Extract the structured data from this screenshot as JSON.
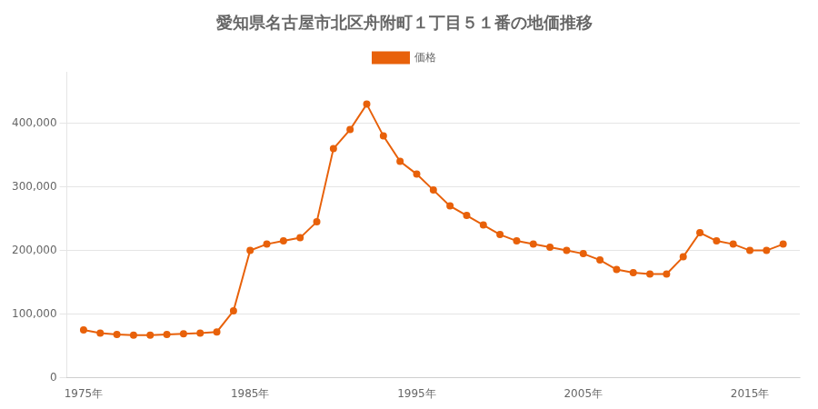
{
  "chart_data": {
    "type": "line",
    "title": "愛知県名古屋市北区舟附町１丁目５１番の地価推移",
    "x": [
      1975,
      1976,
      1977,
      1978,
      1979,
      1980,
      1981,
      1982,
      1983,
      1984,
      1985,
      1986,
      1987,
      1988,
      1989,
      1990,
      1991,
      1992,
      1993,
      1994,
      1995,
      1996,
      1997,
      1998,
      1999,
      2000,
      2001,
      2002,
      2003,
      2004,
      2005,
      2006,
      2007,
      2008,
      2009,
      2010,
      2011,
      2012,
      2013,
      2014,
      2015,
      2016,
      2017
    ],
    "series": [
      {
        "name": "価格",
        "color": "#E8610A",
        "marker": "circle",
        "values": [
          75000,
          70000,
          68000,
          67000,
          67000,
          68000,
          69000,
          70000,
          72000,
          105000,
          200000,
          210000,
          215000,
          220000,
          245000,
          360000,
          390000,
          430000,
          380000,
          340000,
          320000,
          295000,
          270000,
          255000,
          240000,
          225000,
          215000,
          210000,
          205000,
          200000,
          195000,
          185000,
          170000,
          165000,
          163000,
          163000,
          190000,
          228000,
          215000,
          210000,
          200000,
          200000,
          210000
        ]
      }
    ],
    "xlim": [
      1974,
      2018
    ],
    "xticks": [
      {
        "value": 1975,
        "label": "1975年"
      },
      {
        "value": 1985,
        "label": "1985年"
      },
      {
        "value": 1995,
        "label": "1995年"
      },
      {
        "value": 2005,
        "label": "2005年"
      },
      {
        "value": 2015,
        "label": "2015年"
      }
    ],
    "ylim": [
      0,
      480000
    ],
    "yticks": [
      0,
      {
        "value": 100000,
        "label": "100,000"
      },
      {
        "value": 200000,
        "label": "200,000"
      },
      {
        "value": 300000,
        "label": "300,000"
      },
      {
        "value": 400000,
        "label": "400,000"
      }
    ],
    "grid": "y",
    "legend": "top"
  }
}
